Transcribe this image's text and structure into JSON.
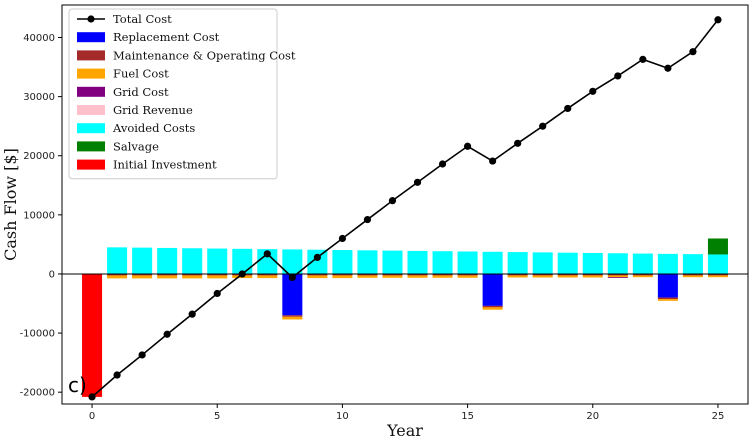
{
  "chart_data": {
    "type": "bar",
    "panel_tag": "c)",
    "xlabel": "Year",
    "ylabel": "Cash Flow [$]",
    "xlim": [
      -1.2,
      26.2
    ],
    "ylim": [
      -22000,
      45500
    ],
    "xticks": [
      0,
      5,
      10,
      15,
      20,
      25
    ],
    "yticks": [
      -20000,
      -10000,
      0,
      10000,
      20000,
      30000,
      40000
    ],
    "grid": false,
    "legend_position": "top-left",
    "years": [
      0,
      1,
      2,
      3,
      4,
      5,
      6,
      7,
      8,
      9,
      10,
      11,
      12,
      13,
      14,
      15,
      16,
      17,
      18,
      19,
      20,
      21,
      22,
      23,
      24,
      25
    ],
    "series": [
      {
        "name": "Total Cost",
        "kind": "line",
        "color": "#000000",
        "values": [
          -20800,
          -17100,
          -13700,
          -10200,
          -6800,
          -3300,
          0,
          3400,
          -600,
          2800,
          6000,
          9200,
          12400,
          15500,
          18600,
          21600,
          19100,
          22100,
          25000,
          28000,
          30900,
          33500,
          36300,
          34800,
          37600,
          43000
        ]
      },
      {
        "name": "Replacement Cost",
        "kind": "bar",
        "color": "#0000ff",
        "values": [
          0,
          0,
          0,
          0,
          0,
          0,
          0,
          0,
          -7000,
          0,
          0,
          0,
          0,
          0,
          0,
          0,
          -5400,
          0,
          0,
          0,
          0,
          0,
          0,
          -4000,
          0,
          0
        ]
      },
      {
        "name": "Maintenance & Operating Cost",
        "kind": "bar",
        "color": "#a52a2a",
        "values": [
          0,
          -250,
          -250,
          -250,
          -250,
          -250,
          -250,
          -250,
          -250,
          -250,
          -250,
          -250,
          -250,
          -250,
          -250,
          -250,
          -250,
          -250,
          -250,
          -250,
          -250,
          -250,
          -250,
          -250,
          -250,
          -250
        ]
      },
      {
        "name": "Fuel Cost",
        "kind": "bar",
        "color": "#ffa500",
        "values": [
          0,
          -500,
          -500,
          -500,
          -500,
          -500,
          -450,
          -450,
          -450,
          -450,
          -450,
          -400,
          -400,
          -400,
          -400,
          -400,
          -400,
          -350,
          -350,
          -350,
          -350,
          -300,
          -300,
          -300,
          -300,
          -300
        ]
      },
      {
        "name": "Grid Cost",
        "kind": "bar",
        "color": "#800080",
        "values": [
          0,
          0,
          0,
          0,
          0,
          0,
          0,
          0,
          0,
          0,
          0,
          0,
          0,
          0,
          0,
          0,
          0,
          0,
          0,
          0,
          0,
          -100,
          0,
          0,
          0,
          0
        ]
      },
      {
        "name": "Grid Revenue",
        "kind": "bar",
        "color": "#ffc0cb",
        "values": [
          0,
          0,
          0,
          0,
          0,
          0,
          0,
          0,
          0,
          0,
          0,
          0,
          0,
          0,
          0,
          0,
          0,
          0,
          0,
          0,
          0,
          0,
          0,
          0,
          0,
          0
        ]
      },
      {
        "name": "Avoided Costs",
        "kind": "bar",
        "color": "#00ffff",
        "values": [
          0,
          4500,
          4450,
          4400,
          4350,
          4300,
          4250,
          4200,
          4150,
          4100,
          4050,
          4000,
          3950,
          3900,
          3850,
          3800,
          3750,
          3700,
          3650,
          3600,
          3550,
          3500,
          3450,
          3400,
          3350,
          3300
        ]
      },
      {
        "name": "Salvage",
        "kind": "bar",
        "color": "#008000",
        "values": [
          0,
          0,
          0,
          0,
          0,
          0,
          0,
          0,
          0,
          0,
          0,
          0,
          0,
          0,
          0,
          0,
          0,
          0,
          0,
          0,
          0,
          0,
          0,
          0,
          0,
          2700
        ]
      },
      {
        "name": "Initial Investment",
        "kind": "bar",
        "color": "#ff0000",
        "values": [
          -20800,
          0,
          0,
          0,
          0,
          0,
          0,
          0,
          0,
          0,
          0,
          0,
          0,
          0,
          0,
          0,
          0,
          0,
          0,
          0,
          0,
          0,
          0,
          0,
          0,
          0
        ]
      }
    ]
  }
}
